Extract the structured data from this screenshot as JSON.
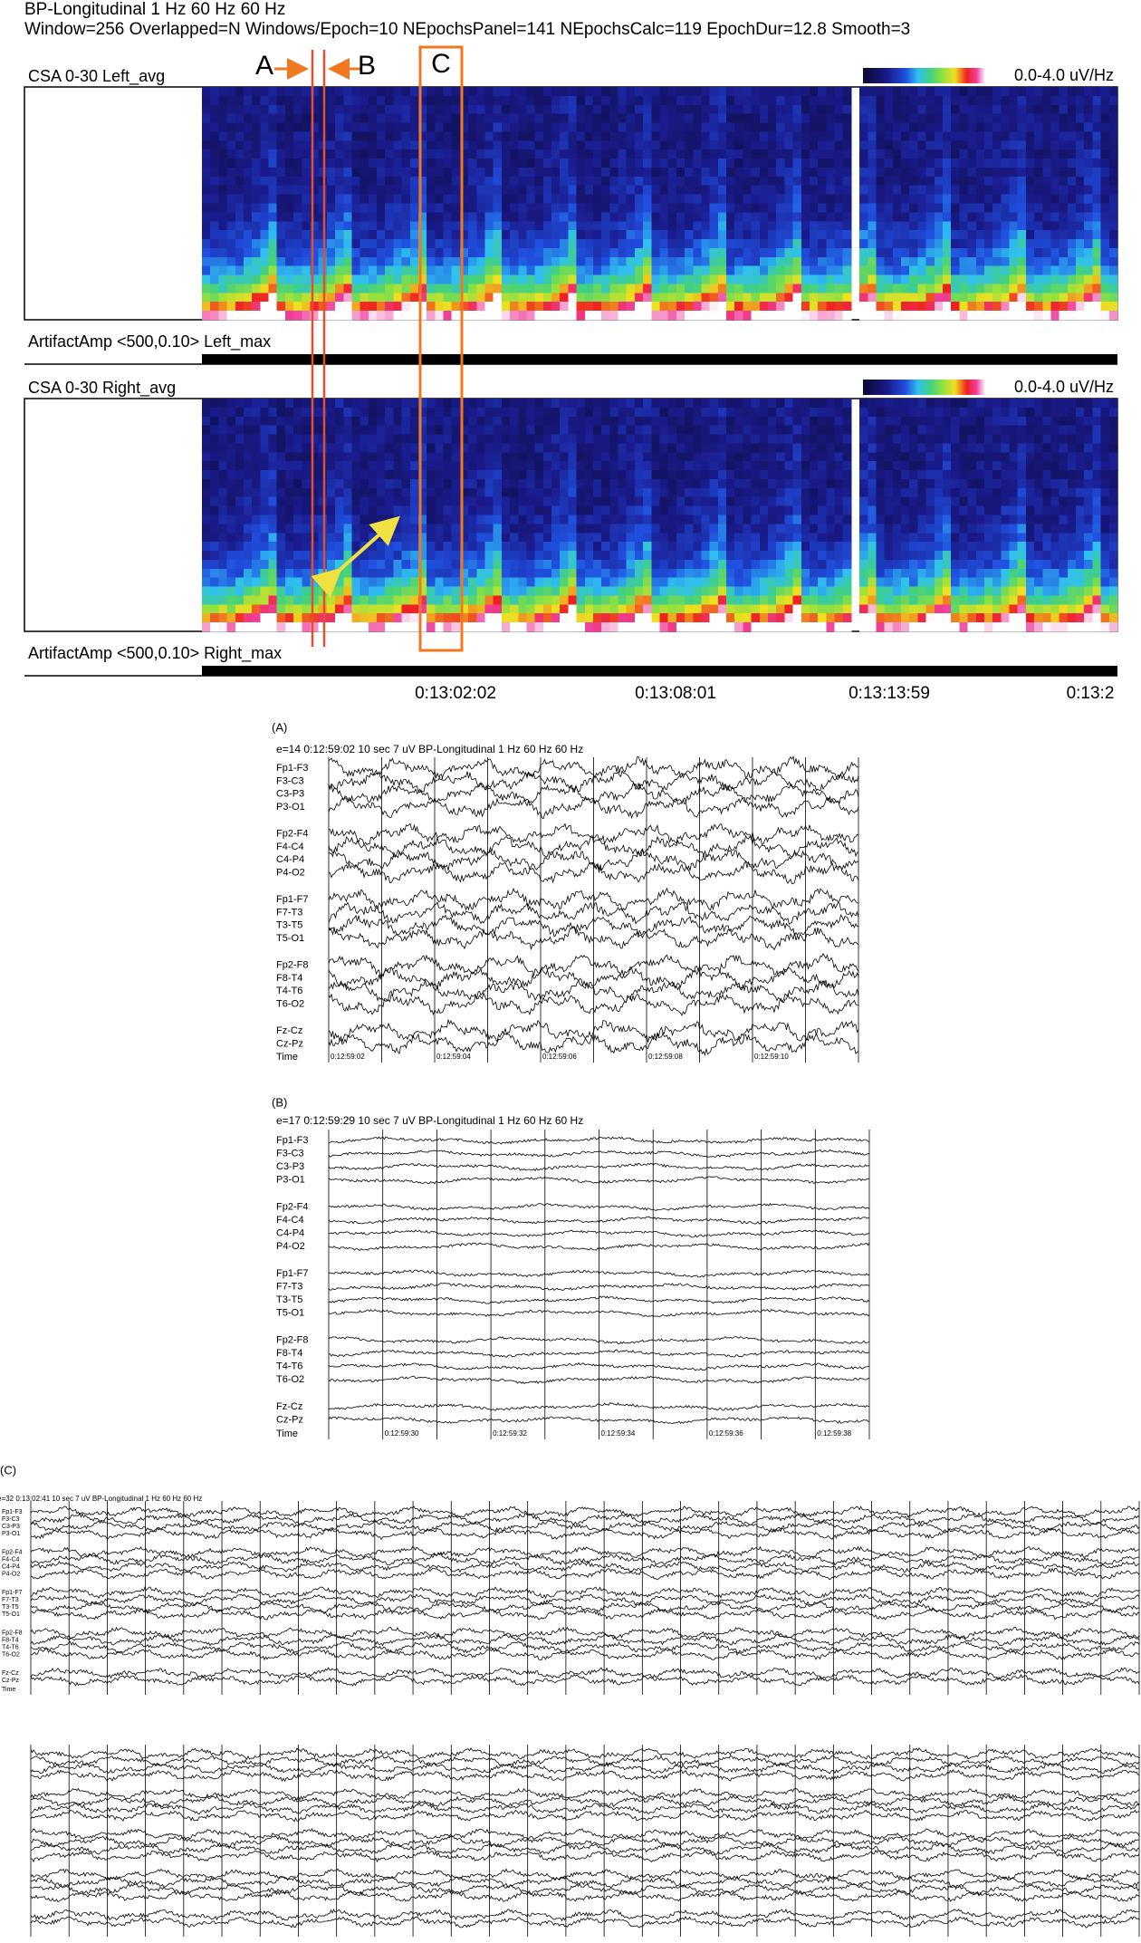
{
  "header": {
    "line1": "BP-Longitudinal  1 Hz  60 Hz  60 Hz",
    "line2": "Window=256 Overlapped=N Windows/Epoch=10 NEpochsPanel=141 NEpochsCalc=119 EpochDur=12.8 Smooth=3"
  },
  "csa_panels": [
    {
      "label": "CSA 0-30 Left_avg",
      "scale": "0.0-4.0 uV/Hz",
      "artifact": "ArtifactAmp <500,0.10> Left_max"
    },
    {
      "label": "CSA 0-30 Right_avg",
      "scale": "0.0-4.0 uV/Hz",
      "artifact": "ArtifactAmp <500,0.10> Right_max"
    }
  ],
  "markers": [
    "A",
    "B",
    "C"
  ],
  "time_axis": [
    "0:13:02:02",
    "0:13:08:01",
    "0:13:13:59",
    "0:13:2"
  ],
  "eeg_panels": [
    {
      "tag": "(A)",
      "info": "e=14  0:12:59:02  10 sec  7 uV  BP-Longitudinal  1 Hz  60 Hz  60 Hz",
      "channels": [
        [
          "Fp1-F3",
          "F3-C3",
          "C3-P3",
          "P3-O1"
        ],
        [
          "Fp2-F4",
          "F4-C4",
          "C4-P4",
          "P4-O2"
        ],
        [
          "Fp1-F7",
          "F7-T3",
          "T3-T5",
          "T5-O1"
        ],
        [
          "Fp2-F8",
          "F8-T4",
          "T4-T6",
          "T6-O2"
        ],
        [
          "Fz-Cz",
          "Cz-Pz"
        ]
      ],
      "time_label": "Time",
      "times": [
        "0:12:59:02",
        "0:12:59:04",
        "0:12:59:06",
        "0:12:59:08",
        "0:12:59:10"
      ]
    },
    {
      "tag": "(B)",
      "info": "e=17  0:12:59:29  10 sec  7 uV  BP-Longitudinal  1 Hz  60 Hz  60 Hz",
      "channels": [
        [
          "Fp1-F3",
          "F3-C3",
          "C3-P3",
          "P3-O1"
        ],
        [
          "Fp2-F4",
          "F4-C4",
          "C4-P4",
          "P4-O2"
        ],
        [
          "Fp1-F7",
          "F7-T3",
          "T3-T5",
          "T5-O1"
        ],
        [
          "Fp2-F8",
          "F8-T4",
          "T4-T6",
          "T6-O2"
        ],
        [
          "Fz-Cz",
          "Cz-Pz"
        ]
      ],
      "time_label": "Time",
      "times": [
        "0:12:59:30",
        "0:12:59:32",
        "0:12:59:34",
        "0:12:59:36",
        "0:12:59:38"
      ]
    },
    {
      "tag": "(C)",
      "info": "e=32  0:13:02:41  10 sec  7 uV  BP-Longitudinal  1 Hz  60 Hz  60 Hz",
      "channels": [
        [
          "Fp1-F3",
          "F3-C3",
          "C3-P3",
          "P3-O1"
        ],
        [
          "Fp2-F4",
          "F4-C4",
          "C4-P4",
          "P4-O2"
        ],
        [
          "Fp1-F7",
          "F7-T3",
          "T3-T5",
          "T5-O1"
        ],
        [
          "Fp2-F8",
          "F8-T4",
          "T4-T6",
          "T6-O2"
        ],
        [
          "Fz-Cz",
          "Cz-Pz"
        ]
      ],
      "time_label": "Time"
    }
  ]
}
